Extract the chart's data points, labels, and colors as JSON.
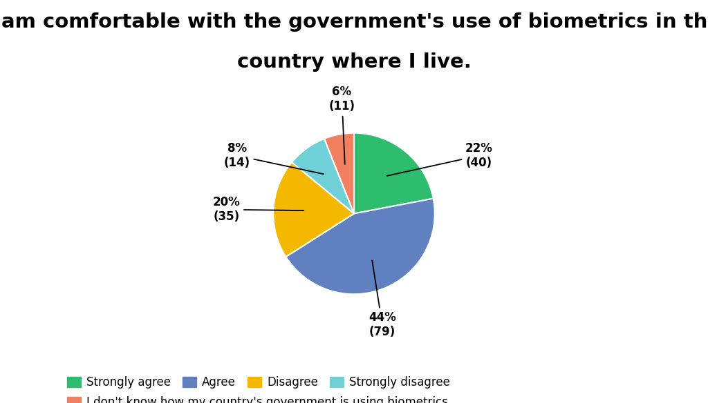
{
  "title_line1": "I am comfortable with the government's use of biometrics in the",
  "title_line2": "country where I live.",
  "slices": [
    {
      "label": "Strongly agree",
      "pct": 22,
      "count": 40,
      "color": "#2ebc6e"
    },
    {
      "label": "Agree",
      "pct": 44,
      "count": 79,
      "color": "#6080c0"
    },
    {
      "label": "Disagree",
      "pct": 20,
      "count": 35,
      "color": "#f5b800"
    },
    {
      "label": "Strongly disagree",
      "pct": 8,
      "count": 14,
      "color": "#70d0d8"
    },
    {
      "label": "I don't know how my country's government is using biometrics",
      "pct": 6,
      "count": 11,
      "color": "#f08060"
    }
  ],
  "background_color": "#ffffff",
  "title_fontsize": 21,
  "label_fontsize": 12,
  "legend_fontsize": 12,
  "annotations": [
    {
      "pct": "22%",
      "count": "(40)",
      "xt": 1.55,
      "yt": 0.72
    },
    {
      "pct": "44%",
      "count": "(79)",
      "xt": 0.35,
      "yt": -1.38
    },
    {
      "pct": "20%",
      "count": "(35)",
      "xt": -1.58,
      "yt": 0.05
    },
    {
      "pct": "8%",
      "count": "(14)",
      "xt": -1.45,
      "yt": 0.72
    },
    {
      "pct": "6%",
      "count": "(11)",
      "xt": -0.15,
      "yt": 1.42
    }
  ]
}
